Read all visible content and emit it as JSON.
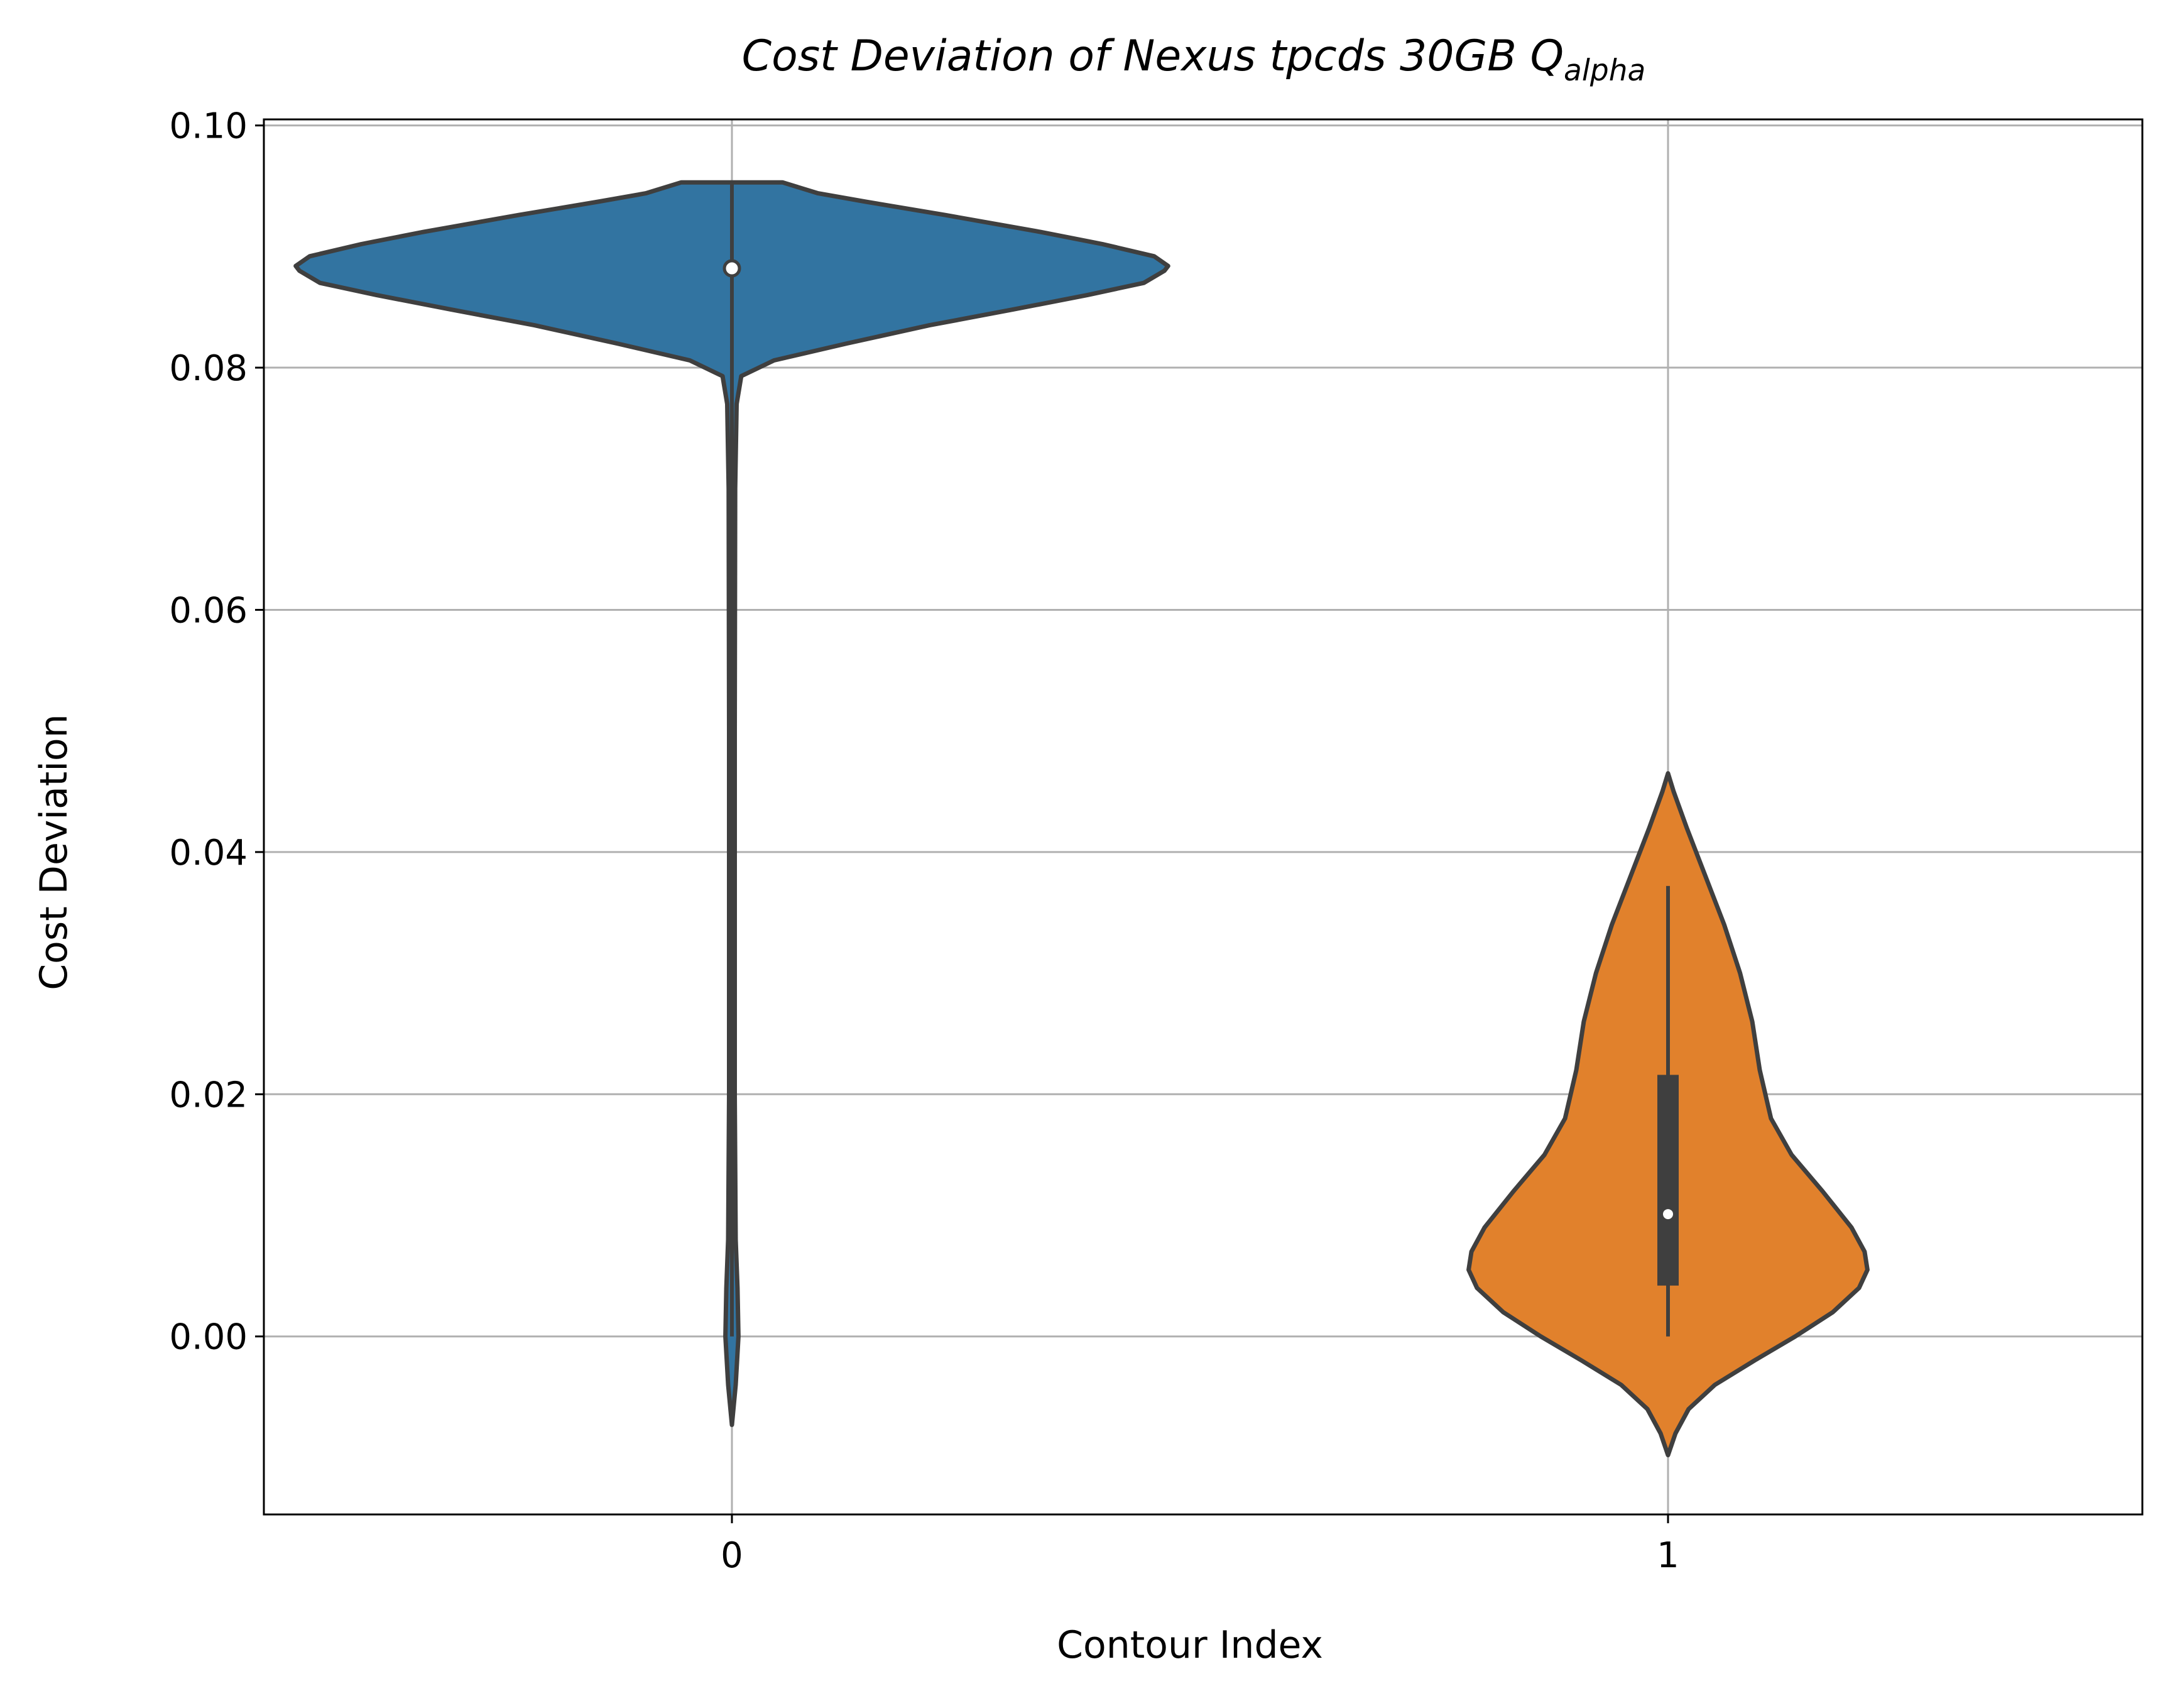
{
  "chart_data": {
    "type": "violin",
    "title": {
      "main": "Cost Deviation of Nexus tpcds  30GB  Q",
      "subscript": "alpha"
    },
    "xlabel": "Contour Index",
    "ylabel": "Cost Deviation",
    "categories": [
      "0",
      "1"
    ],
    "ylim": [
      -0.0147,
      0.1005
    ],
    "y_ticks": [
      0.0,
      0.02,
      0.04,
      0.06,
      0.08,
      0.1
    ],
    "y_tick_labels": [
      "0.00",
      "0.02",
      "0.04",
      "0.06",
      "0.08",
      "0.10"
    ],
    "grid": true,
    "legend": "none",
    "series": [
      {
        "category": "0",
        "color": "#3274a1",
        "range": [
          -0.0073,
          0.0953
        ],
        "median": 0.0882,
        "q1": 0.0882,
        "q3": 0.0882,
        "whisker": [
          0.0,
          0.0953
        ],
        "half_widths": [
          [
            0.0953,
            0.0
          ],
          [
            0.0953,
            0.054
          ],
          [
            0.0944,
            0.092
          ],
          [
            0.0937,
            0.143
          ],
          [
            0.0926,
            0.228
          ],
          [
            0.0912,
            0.33
          ],
          [
            0.0902,
            0.396
          ],
          [
            0.0892,
            0.451
          ],
          [
            0.0884,
            0.466
          ],
          [
            0.088,
            0.462
          ],
          [
            0.087,
            0.44
          ],
          [
            0.086,
            0.38
          ],
          [
            0.0848,
            0.3
          ],
          [
            0.0835,
            0.211
          ],
          [
            0.082,
            0.123
          ],
          [
            0.0806,
            0.045
          ],
          [
            0.0793,
            0.01
          ],
          [
            0.077,
            0.005
          ],
          [
            0.07,
            0.0035
          ],
          [
            0.05,
            0.003
          ],
          [
            0.02,
            0.003
          ],
          [
            0.008,
            0.004
          ],
          [
            0.004,
            0.006
          ],
          [
            0.0,
            0.007
          ],
          [
            -0.004,
            0.004
          ],
          [
            -0.0073,
            0.0
          ]
        ]
      },
      {
        "category": "1",
        "color": "#e1812c",
        "range": [
          -0.0098,
          0.0465
        ],
        "median": 0.0101,
        "q1": 0.0042,
        "q3": 0.0216,
        "whisker": [
          0.0,
          0.0372
        ],
        "half_widths": [
          [
            0.0465,
            0.0
          ],
          [
            0.045,
            0.006
          ],
          [
            0.042,
            0.02
          ],
          [
            0.038,
            0.04
          ],
          [
            0.034,
            0.06
          ],
          [
            0.03,
            0.077
          ],
          [
            0.026,
            0.09
          ],
          [
            0.022,
            0.098
          ],
          [
            0.018,
            0.11
          ],
          [
            0.015,
            0.132
          ],
          [
            0.012,
            0.165
          ],
          [
            0.009,
            0.196
          ],
          [
            0.007,
            0.21
          ],
          [
            0.0055,
            0.213
          ],
          [
            0.004,
            0.204
          ],
          [
            0.002,
            0.176
          ],
          [
            0.0,
            0.136
          ],
          [
            -0.002,
            0.092
          ],
          [
            -0.004,
            0.05
          ],
          [
            -0.006,
            0.022
          ],
          [
            -0.008,
            0.008
          ],
          [
            -0.0098,
            0.0
          ]
        ]
      }
    ]
  }
}
